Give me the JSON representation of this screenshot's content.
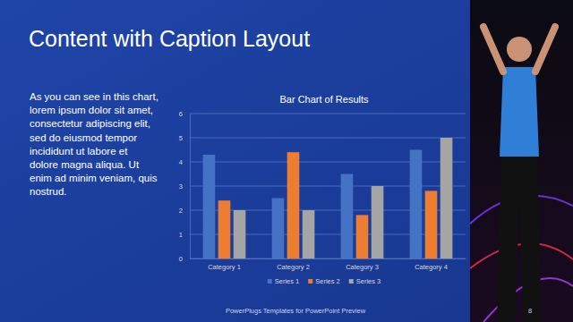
{
  "slide": {
    "title": "Content with Caption Layout",
    "caption": [
      "As you can see in this chart,",
      "lorem ipsum dolor sit amet,",
      "consectetur adipiscing elit,",
      "sed do eiusmod tempor",
      "incididunt ut labore et",
      "dolore magna aliqua. Ut",
      "enim ad minim veniam, quis",
      "nostrud."
    ],
    "footer": "PowerPlugs Templates for PowerPoint Preview",
    "page_number": "8"
  },
  "chart_data": {
    "type": "bar",
    "title": "Bar Chart of Results",
    "categories": [
      "Category 1",
      "Category 2",
      "Category 3",
      "Category 4"
    ],
    "series": [
      {
        "name": "Series 1",
        "color": "#4472c4",
        "values": [
          4.3,
          2.5,
          3.5,
          4.5
        ]
      },
      {
        "name": "Series 2",
        "color": "#ed7d31",
        "values": [
          2.4,
          4.4,
          1.8,
          2.8
        ]
      },
      {
        "name": "Series 3",
        "color": "#a5a5a5",
        "values": [
          2,
          2,
          3,
          5
        ]
      }
    ],
    "ylim": [
      0,
      6
    ],
    "yticks": [
      0,
      1,
      2,
      3,
      4,
      5,
      6
    ],
    "grid": true,
    "legend": "bottom"
  }
}
